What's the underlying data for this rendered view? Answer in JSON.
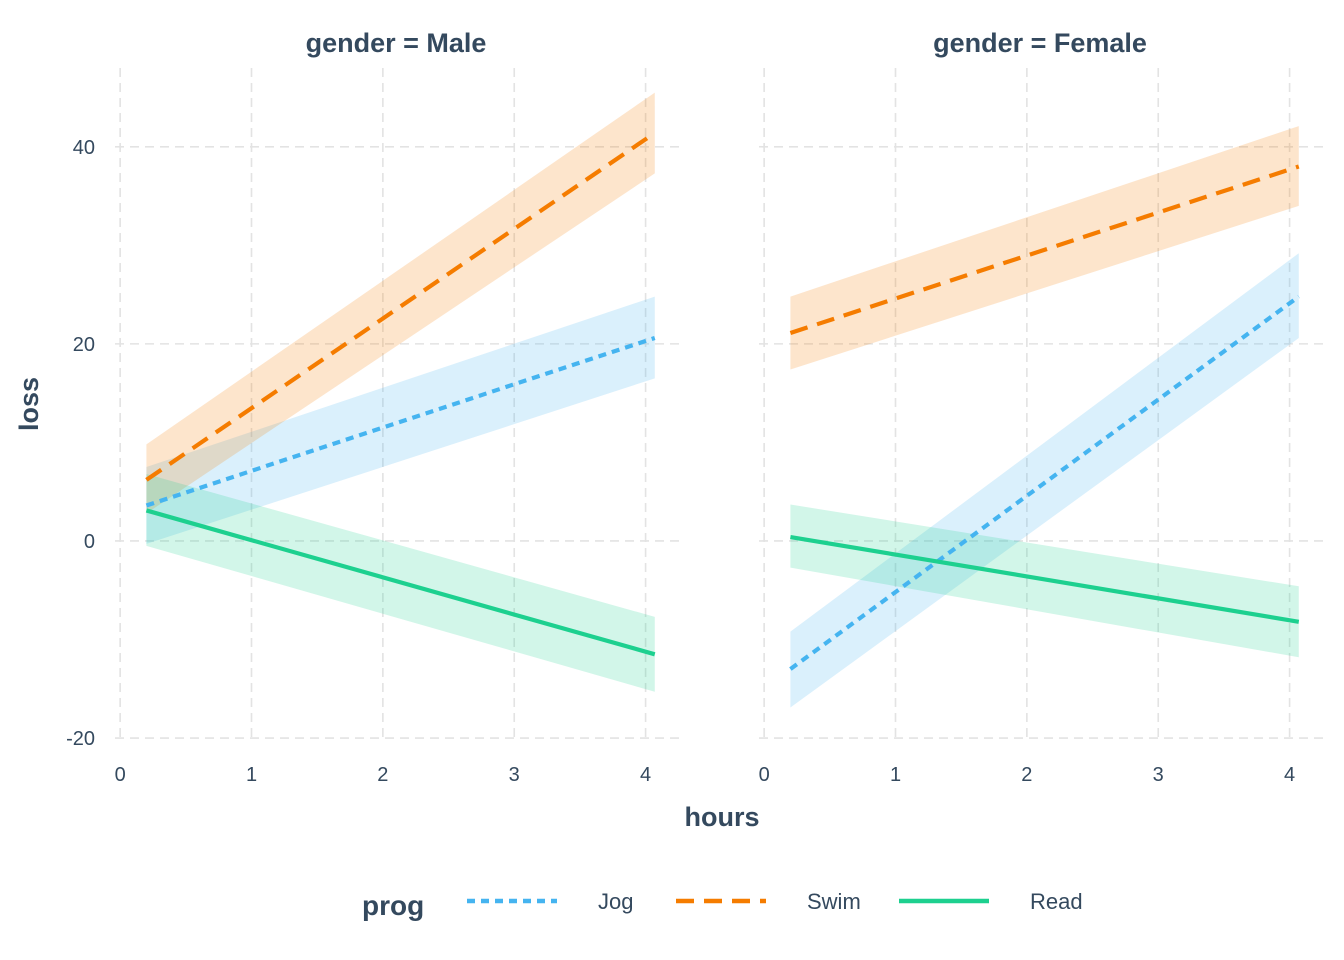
{
  "chart_data": {
    "type": "line",
    "facet_variable": "gender",
    "panels": [
      {
        "strip_label": "gender = Male",
        "series": [
          {
            "name": "Jog",
            "x": [
              0.2,
              4.07
            ],
            "y": [
              3.6,
              20.6
            ],
            "ci_low": [
              -0.3,
              16.5
            ],
            "ci_high": [
              7.5,
              24.8
            ]
          },
          {
            "name": "Swim",
            "x": [
              0.2,
              4.07
            ],
            "y": [
              6.2,
              41.4
            ],
            "ci_low": [
              2.8,
              37.3
            ],
            "ci_high": [
              9.8,
              45.5
            ]
          },
          {
            "name": "Read",
            "x": [
              0.2,
              4.07
            ],
            "y": [
              3.1,
              -11.5
            ],
            "ci_low": [
              -0.5,
              -15.3
            ],
            "ci_high": [
              6.8,
              -7.7
            ]
          }
        ]
      },
      {
        "strip_label": "gender = Female",
        "series": [
          {
            "name": "Jog",
            "x": [
              0.2,
              4.07
            ],
            "y": [
              -13.0,
              24.8
            ],
            "ci_low": [
              -16.9,
              20.6
            ],
            "ci_high": [
              -9.2,
              29.2
            ]
          },
          {
            "name": "Swim",
            "x": [
              0.2,
              4.07
            ],
            "y": [
              21.1,
              38.0
            ],
            "ci_low": [
              17.4,
              34.0
            ],
            "ci_high": [
              24.8,
              42.1
            ]
          },
          {
            "name": "Read",
            "x": [
              0.2,
              4.07
            ],
            "y": [
              0.4,
              -8.2
            ],
            "ci_low": [
              -2.7,
              -11.8
            ],
            "ci_high": [
              3.7,
              -4.6
            ]
          }
        ]
      }
    ],
    "xlabel": "hours",
    "ylabel": "loss",
    "xlim": [
      -0.1,
      4.3
    ],
    "ylim": [
      -20.5,
      48.5
    ],
    "x_ticks": [
      0,
      1,
      2,
      3,
      4
    ],
    "y_ticks": [
      -20,
      0,
      20,
      40
    ],
    "grid": true,
    "legend": {
      "title": "prog",
      "position": "bottom",
      "entries": [
        "Jog",
        "Swim",
        "Read"
      ]
    },
    "colors": {
      "Jog": "#45b4f0",
      "Swim": "#f57c00",
      "Read": "#1dd08f"
    },
    "line_styles": {
      "Jog": "dotted",
      "Swim": "dashed",
      "Read": "solid"
    },
    "ribbon_opacity": 0.2
  }
}
